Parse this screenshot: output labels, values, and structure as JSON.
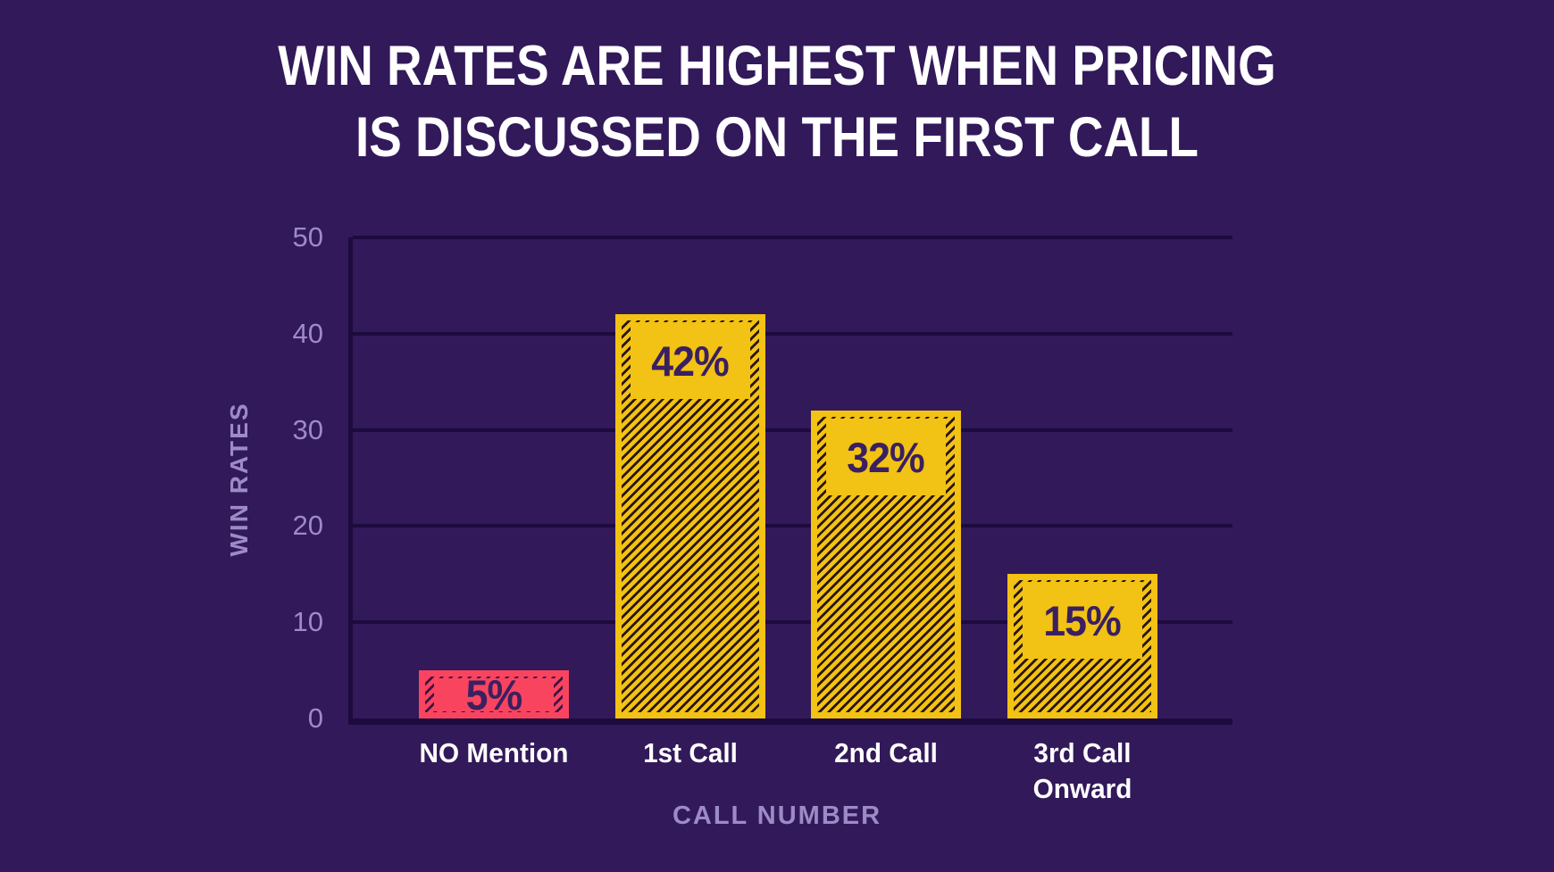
{
  "chart_data": {
    "type": "bar",
    "title": "WIN RATES ARE HIGHEST WHEN PRICING\nIS DISCUSSED ON THE FIRST CALL",
    "categories": [
      "NO Mention",
      "1st Call",
      "2nd Call",
      "3rd Call\nOnward"
    ],
    "values": [
      5,
      42,
      32,
      15
    ],
    "data_labels": [
      "5%",
      "42%",
      "32%",
      "15%"
    ],
    "xlabel": "CALL NUMBER",
    "ylabel": "WIN RATES",
    "ylim": [
      0,
      50
    ],
    "yticks": [
      0,
      10,
      20,
      30,
      40,
      50
    ],
    "grid": true,
    "legend": false,
    "bar_style": "diagonal-hatch",
    "bar_colors": [
      "#F94460",
      "#F2C214",
      "#F2C214",
      "#F2C214"
    ],
    "hatch_colors": [
      "#401345",
      "#2A1606",
      "#2A1606",
      "#2A1606"
    ]
  },
  "colors": {
    "background": "#32195A",
    "gridline": "#1D0B3E",
    "axis_text": "#9C8BC4",
    "title_text": "#FFFFFF",
    "category_text": "#FFFFFF",
    "bar_label_text": "#3A2060"
  }
}
